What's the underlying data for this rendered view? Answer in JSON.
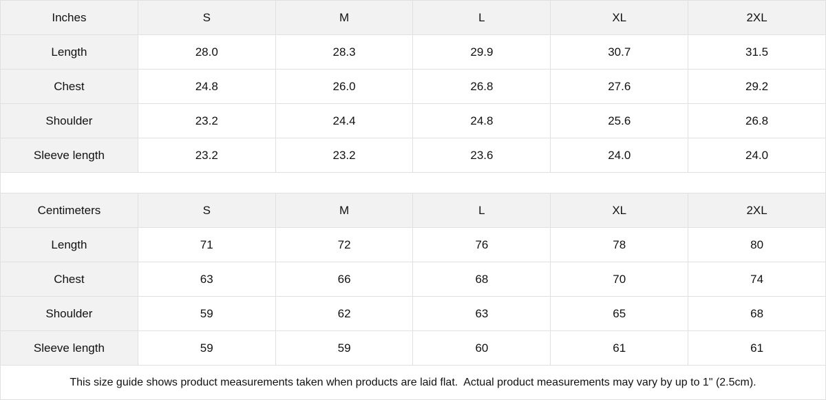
{
  "tables": [
    {
      "unit": "Inches",
      "sizes": [
        "S",
        "M",
        "L",
        "XL",
        "2XL"
      ],
      "rows": [
        {
          "label": "Length",
          "values": [
            "28.0",
            "28.3",
            "29.9",
            "30.7",
            "31.5"
          ]
        },
        {
          "label": "Chest",
          "values": [
            "24.8",
            "26.0",
            "26.8",
            "27.6",
            "29.2"
          ]
        },
        {
          "label": "Shoulder",
          "values": [
            "23.2",
            "24.4",
            "24.8",
            "25.6",
            "26.8"
          ]
        },
        {
          "label": "Sleeve length",
          "values": [
            "23.2",
            "23.2",
            "23.6",
            "24.0",
            "24.0"
          ]
        }
      ]
    },
    {
      "unit": "Centimeters",
      "sizes": [
        "S",
        "M",
        "L",
        "XL",
        "2XL"
      ],
      "rows": [
        {
          "label": "Length",
          "values": [
            "71",
            "72",
            "76",
            "78",
            "80"
          ]
        },
        {
          "label": "Chest",
          "values": [
            "63",
            "66",
            "68",
            "70",
            "74"
          ]
        },
        {
          "label": "Shoulder",
          "values": [
            "59",
            "62",
            "63",
            "65",
            "68"
          ]
        },
        {
          "label": "Sleeve length",
          "values": [
            "59",
            "59",
            "60",
            "61",
            "61"
          ]
        }
      ]
    }
  ],
  "note": "This size guide shows product measurements taken when products are laid flat.  Actual product measurements may vary by up to 1\" (2.5cm).",
  "colors": {
    "header_bg": "#f2f2f2",
    "border": "#e0e0e0",
    "text": "#111111"
  }
}
